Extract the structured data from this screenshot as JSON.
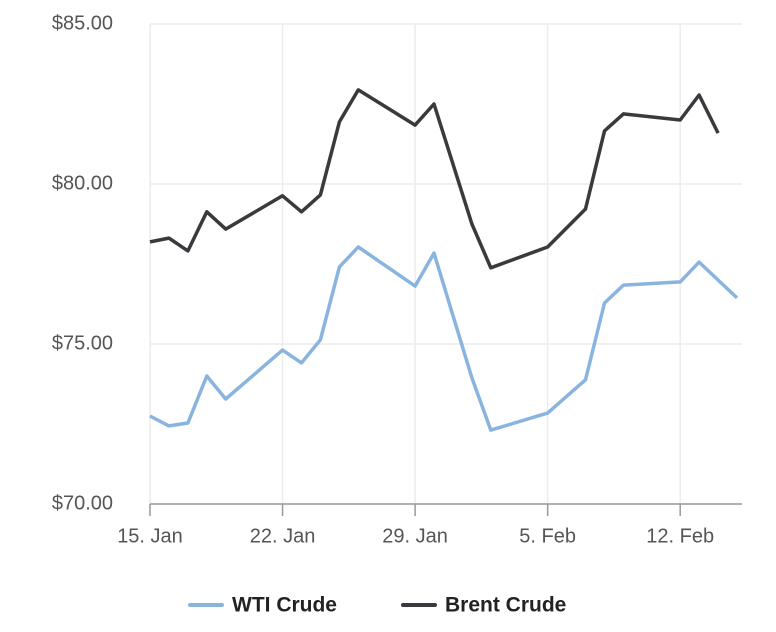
{
  "chart_data": {
    "type": "line",
    "xlim": [
      "15. Jan",
      "15. Feb"
    ],
    "xticks": [
      "15. Jan",
      "22. Jan",
      "29. Jan",
      "5. Feb",
      "12. Feb"
    ],
    "ylim": [
      70,
      85
    ],
    "yticks": [
      {
        "value": 70,
        "label": "$70.00"
      },
      {
        "value": 75,
        "label": "$75.00"
      },
      {
        "value": 80,
        "label": "$80.00"
      },
      {
        "value": 85,
        "label": "$85.00"
      }
    ],
    "grid": true,
    "legend": "bottom",
    "series": [
      {
        "name": "WTI Crude",
        "color": "#8ab4e0",
        "x": [
          "15. Jan",
          "16. Jan",
          "17. Jan",
          "18. Jan",
          "19. Jan",
          "22. Jan",
          "23. Jan",
          "24. Jan",
          "25. Jan",
          "26. Jan",
          "29. Jan",
          "30. Jan",
          "1. Feb",
          "2. Feb",
          "5. Feb",
          "7. Feb",
          "8. Feb",
          "9. Feb",
          "12. Feb",
          "13. Feb",
          "15. Feb"
        ],
        "values": [
          72.75,
          72.44,
          72.53,
          74.0,
          73.28,
          74.81,
          74.41,
          75.13,
          77.41,
          78.03,
          76.81,
          77.84,
          73.94,
          72.31,
          72.84,
          73.88,
          76.28,
          76.84,
          76.94,
          77.56,
          76.44
        ]
      },
      {
        "name": "Brent Crude",
        "color": "#3a3a3e",
        "x": [
          "15. Jan",
          "16. Jan",
          "17. Jan",
          "18. Jan",
          "19. Jan",
          "22. Jan",
          "23. Jan",
          "24. Jan",
          "25. Jan",
          "26. Jan",
          "29. Jan",
          "30. Jan",
          "1. Feb",
          "2. Feb",
          "5. Feb",
          "7. Feb",
          "8. Feb",
          "9. Feb",
          "12. Feb",
          "13. Feb",
          "14. Feb"
        ],
        "values": [
          78.19,
          78.31,
          77.91,
          79.13,
          78.59,
          79.63,
          79.13,
          79.66,
          81.94,
          82.94,
          81.84,
          82.5,
          78.75,
          77.38,
          78.03,
          79.22,
          81.66,
          82.19,
          82.0,
          82.78,
          81.59
        ]
      }
    ]
  }
}
